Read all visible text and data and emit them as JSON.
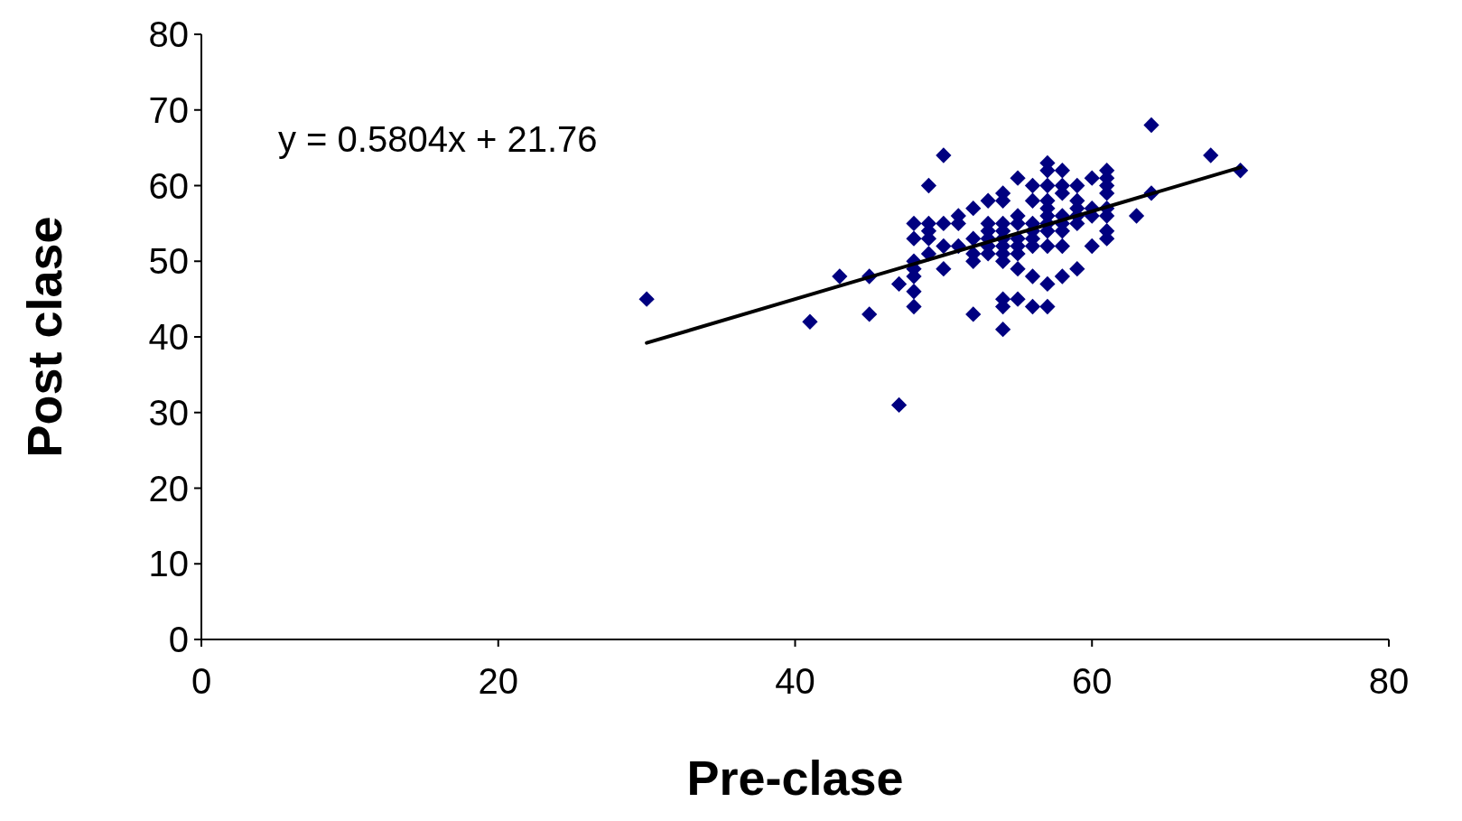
{
  "chart_data": {
    "type": "scatter",
    "xlabel": "Pre-clase",
    "ylabel": "Post clase",
    "xlim": [
      0,
      80
    ],
    "xticks": [
      0,
      20,
      40,
      60,
      80
    ],
    "ylim": [
      0,
      80
    ],
    "yticks": [
      0,
      10,
      20,
      30,
      40,
      50,
      60,
      70,
      80
    ],
    "grid": false,
    "annotations": [
      "y = 0.5804x + 21.76"
    ],
    "series": [
      {
        "marker": "diamond",
        "color": "#000080",
        "x": [
          30,
          41,
          43,
          45,
          45,
          47,
          47,
          48,
          48,
          48,
          48,
          48,
          48,
          48,
          49,
          49,
          49,
          49,
          49,
          50,
          50,
          50,
          50,
          51,
          51,
          51,
          52,
          52,
          52,
          52,
          52,
          53,
          53,
          53,
          53,
          53,
          53,
          54,
          54,
          54,
          54,
          54,
          54,
          54,
          54,
          54,
          54,
          54,
          55,
          55,
          55,
          55,
          55,
          55,
          55,
          55,
          56,
          56,
          56,
          56,
          56,
          56,
          56,
          56,
          57,
          57,
          57,
          57,
          57,
          57,
          57,
          57,
          57,
          57,
          57,
          58,
          58,
          58,
          58,
          58,
          58,
          58,
          58,
          59,
          59,
          59,
          59,
          59,
          59,
          60,
          60,
          60,
          60,
          61,
          61,
          61,
          61,
          61,
          61,
          61,
          61,
          63,
          64,
          64,
          68,
          70
        ],
        "values": [
          45,
          42,
          48,
          48,
          43,
          47,
          31,
          55,
          53,
          50,
          49,
          48,
          46,
          44,
          60,
          55,
          54,
          53,
          51,
          64,
          55,
          52,
          49,
          56,
          55,
          52,
          57,
          53,
          51,
          50,
          43,
          58,
          55,
          54,
          53,
          52,
          51,
          59,
          58,
          55,
          54,
          53,
          52,
          51,
          50,
          45,
          44,
          41,
          61,
          56,
          55,
          53,
          52,
          51,
          49,
          45,
          60,
          58,
          55,
          54,
          53,
          52,
          48,
          44,
          63,
          62,
          60,
          58,
          57,
          56,
          55,
          54,
          52,
          47,
          44,
          62,
          60,
          59,
          56,
          55,
          54,
          52,
          48,
          60,
          58,
          57,
          56,
          55,
          49,
          61,
          57,
          56,
          52,
          62,
          61,
          60,
          59,
          57,
          56,
          54,
          53,
          56,
          68,
          59,
          64,
          62
        ]
      },
      {
        "type": "line",
        "color": "#000000",
        "line_style": "solid",
        "x": [
          30,
          70
        ],
        "values": [
          39.2,
          62.4
        ]
      }
    ]
  }
}
